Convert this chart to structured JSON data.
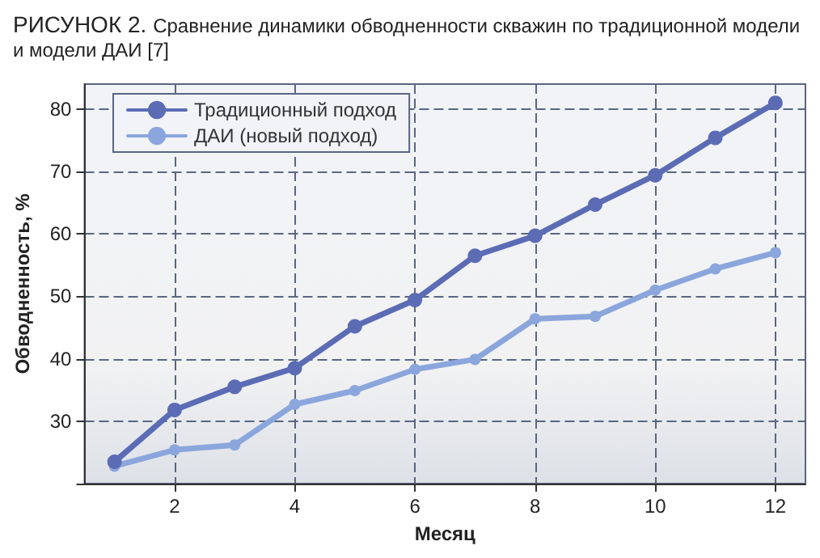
{
  "chart_data": {
    "type": "line",
    "title": "РИСУНОК 2.",
    "subtitle": "Сравнение динамики обводненности скважин по традиционной модели и модели ДАИ [7]",
    "xlabel": "Месяц",
    "ylabel": "Обводненность, %",
    "x": [
      1,
      2,
      3,
      4,
      5,
      6,
      7,
      8,
      9,
      10,
      11,
      12
    ],
    "series": [
      {
        "name": "Традиционный подход",
        "color": "#5b6cb5",
        "values": [
          23.5,
          31.8,
          35.5,
          38.5,
          45.2,
          49.4,
          56.5,
          59.7,
          64.7,
          69.4,
          75.4,
          81
        ]
      },
      {
        "name": "ДАИ (новый подход)",
        "color": "#8ba6dc",
        "values": [
          22.8,
          25.4,
          26.2,
          32.7,
          34.9,
          38.3,
          39.9,
          46.4,
          46.8,
          51,
          54.4,
          57
        ]
      }
    ],
    "xlim": [
      0.5,
      12.5
    ],
    "xticks": [
      2,
      4,
      6,
      8,
      10,
      12
    ],
    "ylim": [
      20,
      84
    ],
    "yticks": [
      {
        "value": 20,
        "label": null
      },
      30,
      40,
      50,
      60,
      70,
      80
    ],
    "grid": true,
    "legend": "top left",
    "marker": "circle",
    "line_style": "solid"
  }
}
